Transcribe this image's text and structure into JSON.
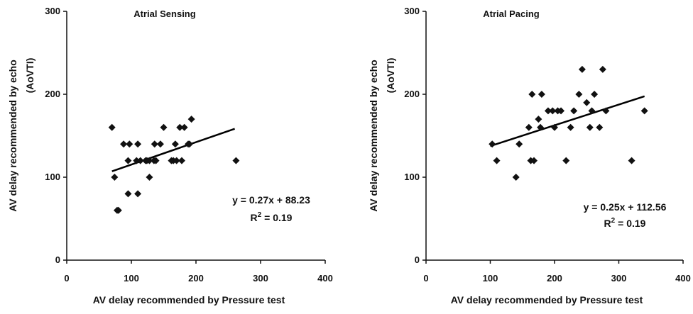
{
  "charts": [
    {
      "type": "scatter",
      "title": "Atrial Sensing",
      "xlabel": "AV delay recommended by Pressure test",
      "ylabel_line1": "AV delay recommended by echo",
      "ylabel_line2": "(AoVTI)",
      "xlim": [
        0,
        400
      ],
      "ylim": [
        0,
        300
      ],
      "x_ticks": [
        0,
        100,
        200,
        300,
        400
      ],
      "y_ticks": [
        0,
        100,
        200,
        300
      ],
      "equation": "y = 0.27x + 88.23",
      "r2_label": "R",
      "r2_sup": "2",
      "r2_value": " = 0.19",
      "trend": {
        "slope": 0.27,
        "intercept": 88.23,
        "x_start": 70,
        "x_end": 260
      },
      "points": [
        [
          70,
          160
        ],
        [
          74,
          100
        ],
        [
          78,
          60
        ],
        [
          80,
          60
        ],
        [
          88,
          140
        ],
        [
          95,
          120
        ],
        [
          95,
          80
        ],
        [
          97,
          140
        ],
        [
          108,
          120
        ],
        [
          110,
          140
        ],
        [
          110,
          80
        ],
        [
          114,
          120
        ],
        [
          122,
          120
        ],
        [
          124,
          120
        ],
        [
          128,
          100
        ],
        [
          128,
          120
        ],
        [
          135,
          120
        ],
        [
          136,
          140
        ],
        [
          138,
          120
        ],
        [
          145,
          140
        ],
        [
          150,
          160
        ],
        [
          162,
          120
        ],
        [
          165,
          120
        ],
        [
          168,
          140
        ],
        [
          170,
          120
        ],
        [
          175,
          160
        ],
        [
          178,
          120
        ],
        [
          182,
          160
        ],
        [
          188,
          140
        ],
        [
          190,
          140
        ],
        [
          193,
          170
        ],
        [
          262,
          120
        ]
      ]
    },
    {
      "type": "scatter",
      "title": "Atrial Pacing",
      "xlabel": "AV delay recommended by Pressure test",
      "ylabel_line1": "AV delay recommended by echo",
      "ylabel_line2": "(AoVTI)",
      "xlim": [
        0,
        400
      ],
      "ylim": [
        0,
        300
      ],
      "x_ticks": [
        0,
        100,
        200,
        300,
        400
      ],
      "y_ticks": [
        0,
        100,
        200,
        300
      ],
      "equation": "y = 0.25x + 112.56",
      "r2_label": "R",
      "r2_sup": "2",
      "r2_value": " = 0.19",
      "trend": {
        "slope": 0.25,
        "intercept": 112.56,
        "x_start": 100,
        "x_end": 340
      },
      "points": [
        [
          103,
          140
        ],
        [
          110,
          120
        ],
        [
          140,
          100
        ],
        [
          145,
          140
        ],
        [
          160,
          160
        ],
        [
          163,
          120
        ],
        [
          165,
          200
        ],
        [
          168,
          120
        ],
        [
          175,
          170
        ],
        [
          178,
          160
        ],
        [
          180,
          200
        ],
        [
          190,
          180
        ],
        [
          197,
          180
        ],
        [
          200,
          160
        ],
        [
          205,
          180
        ],
        [
          210,
          180
        ],
        [
          218,
          120
        ],
        [
          225,
          160
        ],
        [
          230,
          180
        ],
        [
          238,
          200
        ],
        [
          243,
          230
        ],
        [
          250,
          190
        ],
        [
          255,
          160
        ],
        [
          258,
          180
        ],
        [
          262,
          200
        ],
        [
          270,
          160
        ],
        [
          275,
          230
        ],
        [
          280,
          180
        ],
        [
          320,
          120
        ],
        [
          340,
          180
        ]
      ]
    }
  ]
}
